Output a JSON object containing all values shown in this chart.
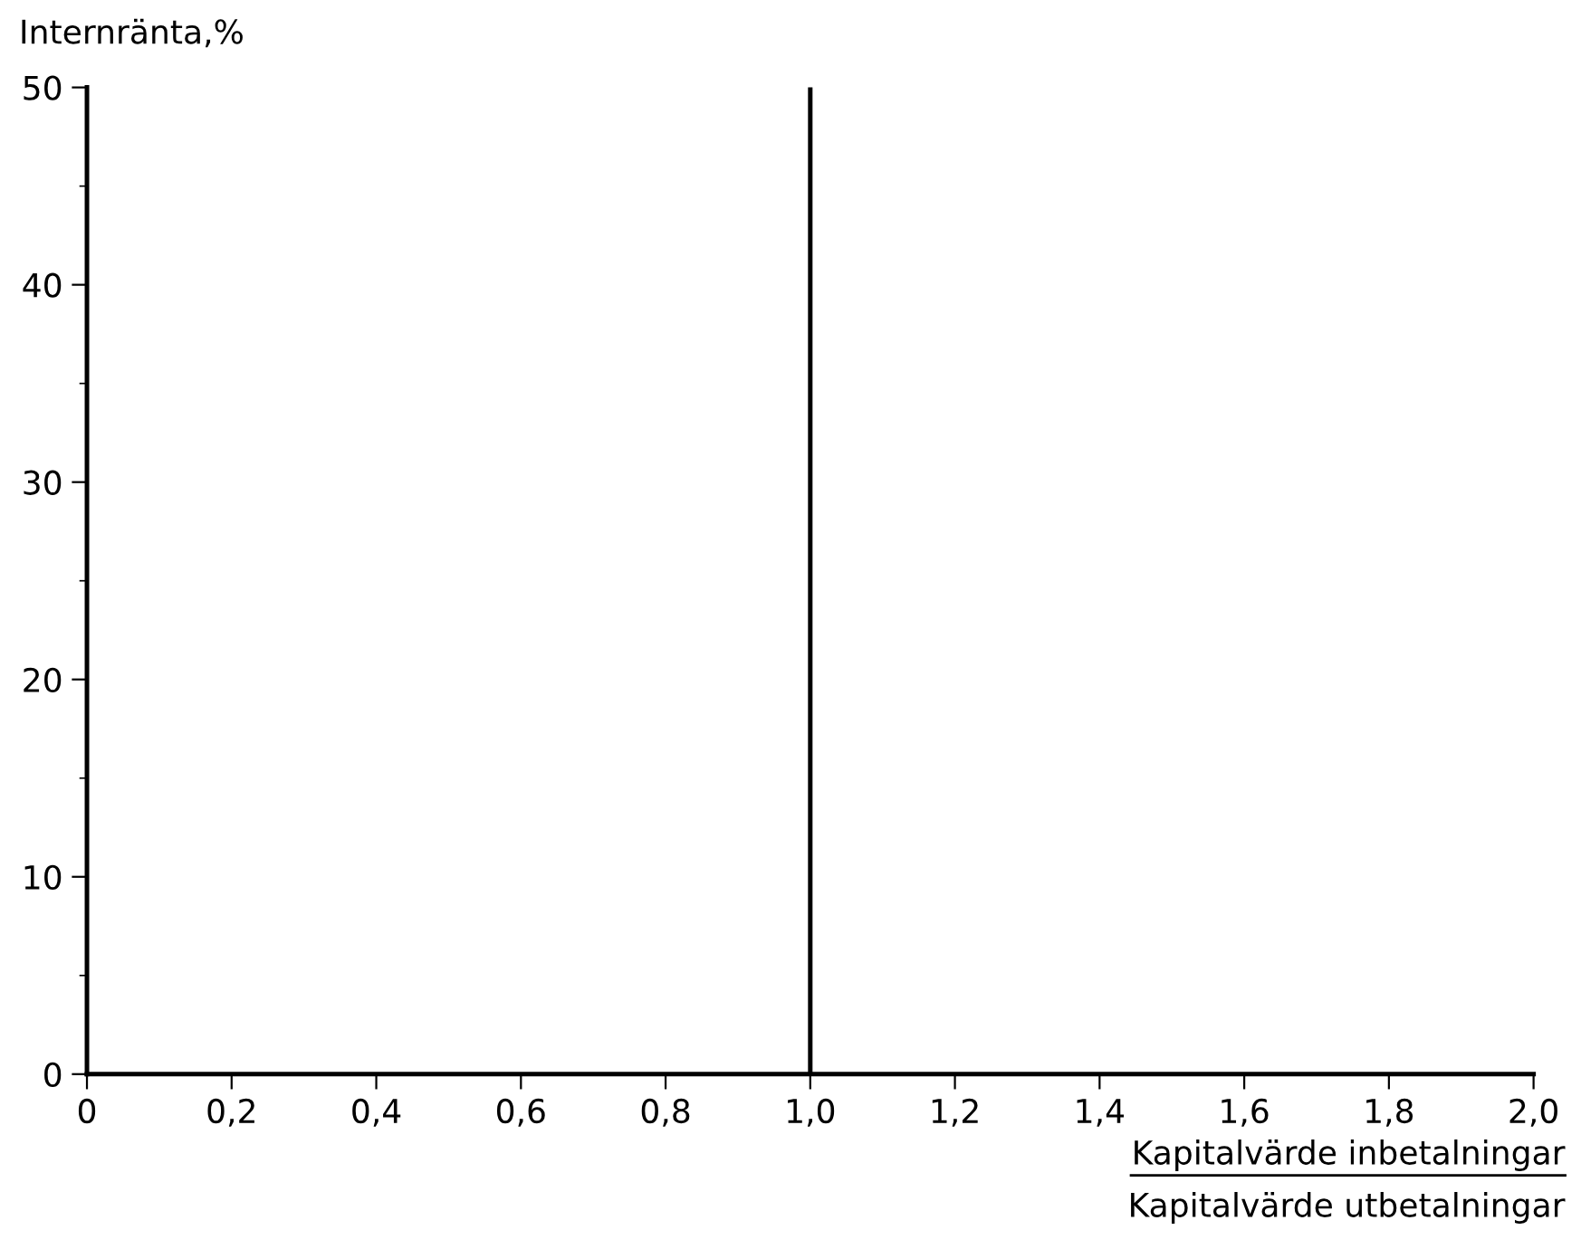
{
  "chart_data": {
    "type": "line",
    "ylabel": "Internränta,%",
    "xlabel": "Kapitalvärde inbetalningar\nKapitalvärde utbetalningar",
    "xlim": [
      0,
      2
    ],
    "ylim": [
      0,
      50
    ],
    "xticks": [
      0,
      {
        "value": 0.2,
        "label": "0,2"
      },
      {
        "value": 0.4,
        "label": "0,4"
      },
      {
        "value": 0.6,
        "label": "0,6"
      },
      {
        "value": 0.8,
        "label": "0,8"
      },
      {
        "value": 1.0,
        "label": "1,0"
      },
      {
        "value": 1.2,
        "label": "1,2"
      },
      {
        "value": 1.4,
        "label": "1,4"
      },
      {
        "value": 1.6,
        "label": "1,6"
      },
      {
        "value": 1.8,
        "label": "1,8"
      },
      {
        "value": 2.0,
        "label": "2,0"
      }
    ],
    "yticks": [
      0,
      {
        "value": 5,
        "label": null
      },
      10,
      {
        "value": 15,
        "label": null
      },
      20,
      {
        "value": 25,
        "label": null
      },
      30,
      {
        "value": 35,
        "label": null
      },
      40,
      {
        "value": 45,
        "label": null
      },
      50
    ],
    "ref_lines": [
      {
        "axis": "x",
        "value": 1.0,
        "color": "#000000"
      }
    ],
    "grid": false
  }
}
